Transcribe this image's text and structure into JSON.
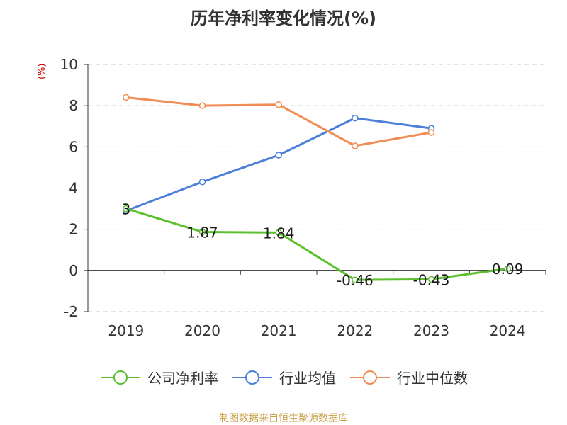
{
  "title": "历年净利率变化情况(%)",
  "unit": "(%)",
  "source": "制图数据来自恒生聚源数据库",
  "colors": {
    "title": "#333333",
    "unit": "#cc0000",
    "source": "#c8a24a",
    "axis": "#333333",
    "grid": "#c8c8c8"
  },
  "chart_data": {
    "type": "line",
    "categories": [
      "2019",
      "2020",
      "2021",
      "2022",
      "2023",
      "2024"
    ],
    "ylim": [
      -2,
      10
    ],
    "yticks": [
      "-2",
      "0",
      "2",
      "4",
      "6",
      "8",
      "10"
    ],
    "grid": true,
    "legend_position": "bottom",
    "series": [
      {
        "name": "公司净利率",
        "color": "#5cc02e",
        "values": [
          3,
          1.87,
          1.84,
          -0.46,
          -0.43,
          0.09
        ],
        "labels": [
          "3",
          "1.87",
          "1.84",
          "-0.46",
          "-0.43",
          "0.09"
        ]
      },
      {
        "name": "行业均值",
        "color": "#4e7fd8",
        "values": [
          2.9,
          4.3,
          5.6,
          7.4,
          6.9,
          null
        ]
      },
      {
        "name": "行业中位数",
        "color": "#f28c55",
        "values": [
          8.4,
          8.0,
          8.05,
          6.05,
          6.7,
          null
        ]
      }
    ]
  }
}
